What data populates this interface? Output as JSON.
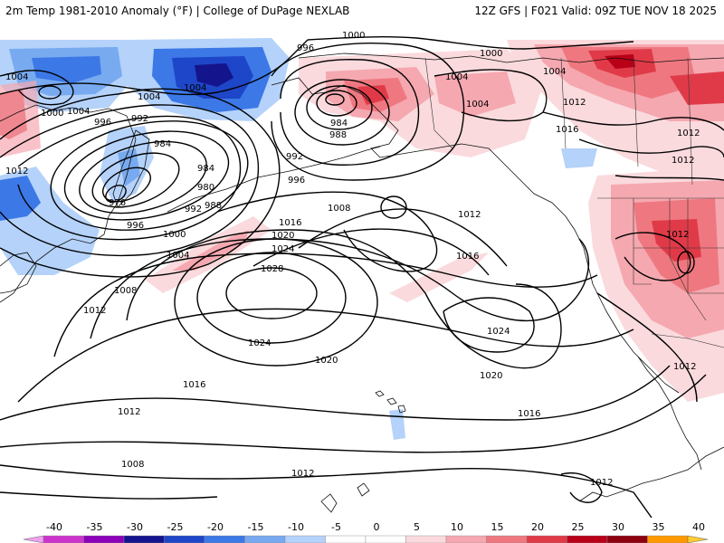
{
  "header": {
    "left_title": "2m Temp 1981-2010 Anomaly (°F) | College of DuPage NEXLAB",
    "right_title": "12Z GFS | F021 Valid: 09Z TUE NOV 18 2025"
  },
  "colors": {
    "neg_35": "#cc33cc",
    "neg_30": "#8b00b8",
    "neg_25": "#14148c",
    "neg_20": "#1e46c8",
    "neg_15": "#3c78e6",
    "neg_10": "#78aaf0",
    "neg_5": "#b4d2fa",
    "zero": "#ffffff",
    "pos_5": "#fadadd",
    "pos_10": "#f5a8b0",
    "pos_15": "#ef7880",
    "pos_20": "#e03a48",
    "pos_25": "#b80018",
    "pos_30": "#8c0010",
    "pos_35": "#ff9900",
    "pos_40": "#ffcc33"
  },
  "colorbar": {
    "ticks": [
      "-40",
      "-35",
      "-30",
      "-25",
      "-20",
      "-15",
      "-10",
      "-5",
      "0",
      "5",
      "10",
      "15",
      "20",
      "25",
      "30",
      "35",
      "40"
    ],
    "colors": [
      "#f0a0f0",
      "#cc33cc",
      "#8b00b8",
      "#14148c",
      "#1e46c8",
      "#3c78e6",
      "#78aaf0",
      "#b4d2fa",
      "#ffffff",
      "#ffffff",
      "#fadadd",
      "#f5a8b0",
      "#ef7880",
      "#e03a48",
      "#b80018",
      "#8c0010",
      "#ff9900",
      "#ffcc33"
    ]
  },
  "isobar_labels": [
    "996",
    "1000",
    "1000",
    "1004",
    "1004",
    "1004",
    "1004",
    "1004",
    "1000",
    "1004",
    "996",
    "992",
    "984",
    "984",
    "988",
    "992",
    "996",
    "1004",
    "1012",
    "1012",
    "1016",
    "1012",
    "1012",
    "1012",
    "984",
    "980",
    "988",
    "976",
    "992",
    "996",
    "1000",
    "1004",
    "1008",
    "1016",
    "1020",
    "1024",
    "1028",
    "1008",
    "1012",
    "1016",
    "1024",
    "1020",
    "1024",
    "1020",
    "1016",
    "1012",
    "1012",
    "1008",
    "1012",
    "1012",
    "1016",
    "1012"
  ]
}
